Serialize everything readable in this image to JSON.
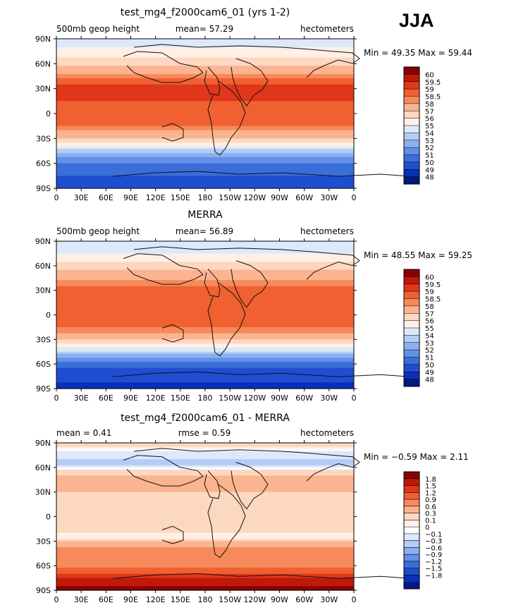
{
  "season": "JJA",
  "chart_data": [
    {
      "type": "heatmap",
      "title": "test_mg4_f2000cam6_01 (yrs 1-2)",
      "left_label": "500mb geop height",
      "center_label": "mean=  57.29",
      "right_label": "hectometers",
      "minmax": "Min =  49.35 Max =  59.44",
      "x_ticks": [
        "0",
        "30E",
        "60E",
        "90E",
        "120E",
        "150E",
        "180",
        "150W",
        "120W",
        "90W",
        "60W",
        "30W",
        "0"
      ],
      "y_ticks": [
        "90N",
        "60N",
        "30N",
        "0",
        "30S",
        "60S",
        "90S"
      ],
      "levels": [
        "60",
        "59.5",
        "59",
        "58.5",
        "58",
        "57",
        "56",
        "55",
        "54",
        "53",
        "52",
        "51",
        "50",
        "49",
        "48"
      ],
      "colors": [
        "#8b0000",
        "#c1180c",
        "#e0361b",
        "#f06030",
        "#f78a5a",
        "#fbb48f",
        "#fdd8c0",
        "#fff0e6",
        "#dce8fb",
        "#b4cdf6",
        "#8cb0ef",
        "#6290e6",
        "#3a6ed9",
        "#1f4fd0",
        "#0a2fb8",
        "#001a80"
      ],
      "zonal_profile": [
        {
          "lat": 90,
          "value": 54.5
        },
        {
          "lat": 75,
          "value": 55.2
        },
        {
          "lat": 60,
          "value": 56.6
        },
        {
          "lat": 45,
          "value": 58.3
        },
        {
          "lat": 30,
          "value": 59.3
        },
        {
          "lat": 15,
          "value": 59.0
        },
        {
          "lat": 0,
          "value": 58.8
        },
        {
          "lat": -15,
          "value": 58.6
        },
        {
          "lat": -25,
          "value": 57.6
        },
        {
          "lat": -35,
          "value": 56.0
        },
        {
          "lat": -45,
          "value": 53.5
        },
        {
          "lat": -55,
          "value": 51.5
        },
        {
          "lat": -65,
          "value": 50.5
        },
        {
          "lat": -75,
          "value": 50.0
        },
        {
          "lat": -90,
          "value": 49.6
        }
      ]
    },
    {
      "type": "heatmap",
      "title": "MERRA",
      "left_label": "500mb geop height",
      "center_label": "mean=  56.89",
      "right_label": "hectometers",
      "minmax": "Min =  48.55 Max =  59.25",
      "x_ticks": [
        "0",
        "30E",
        "60E",
        "90E",
        "120E",
        "150E",
        "180",
        "150W",
        "120W",
        "90W",
        "60W",
        "30W",
        "0"
      ],
      "y_ticks": [
        "90N",
        "60N",
        "30N",
        "0",
        "30S",
        "60S",
        "90S"
      ],
      "levels": [
        "60",
        "59.5",
        "59",
        "58.5",
        "58",
        "57",
        "56",
        "55",
        "54",
        "53",
        "52",
        "51",
        "50",
        "49",
        "48"
      ],
      "colors": [
        "#8b0000",
        "#c1180c",
        "#e0361b",
        "#f06030",
        "#f78a5a",
        "#fbb48f",
        "#fdd8c0",
        "#fff0e6",
        "#dce8fb",
        "#b4cdf6",
        "#8cb0ef",
        "#6290e6",
        "#3a6ed9",
        "#1f4fd0",
        "#0a2fb8",
        "#001a80"
      ],
      "zonal_profile": [
        {
          "lat": 90,
          "value": 54.3
        },
        {
          "lat": 75,
          "value": 55.0
        },
        {
          "lat": 60,
          "value": 56.4
        },
        {
          "lat": 45,
          "value": 57.9
        },
        {
          "lat": 30,
          "value": 58.9
        },
        {
          "lat": 15,
          "value": 58.8
        },
        {
          "lat": 0,
          "value": 58.7
        },
        {
          "lat": -15,
          "value": 58.5
        },
        {
          "lat": -25,
          "value": 57.8
        },
        {
          "lat": -35,
          "value": 56.2
        },
        {
          "lat": -45,
          "value": 53.8
        },
        {
          "lat": -55,
          "value": 51.3
        },
        {
          "lat": -65,
          "value": 49.9
        },
        {
          "lat": -75,
          "value": 49.2
        },
        {
          "lat": -90,
          "value": 48.8
        }
      ]
    },
    {
      "type": "heatmap",
      "title": "test_mg4_f2000cam6_01 - MERRA",
      "left_label": "mean =    0.41",
      "center_label": "rmse =    0.59",
      "right_label": "hectometers",
      "minmax": "Min =  −0.59 Max =    2.11",
      "x_ticks": [
        "0",
        "30E",
        "60E",
        "90E",
        "120E",
        "150E",
        "180",
        "150W",
        "120W",
        "90W",
        "60W",
        "30W",
        "0"
      ],
      "y_ticks": [
        "90N",
        "60N",
        "30N",
        "0",
        "30S",
        "60S",
        "90S"
      ],
      "levels": [
        "1.8",
        "1.5",
        "1.2",
        "0.9",
        "0.6",
        "0.3",
        "0.1",
        "0",
        "−0.1",
        "−0.3",
        "−0.6",
        "−0.9",
        "−1.2",
        "−1.5",
        "−1.8"
      ],
      "colors": [
        "#8b0000",
        "#c1180c",
        "#e0361b",
        "#f06030",
        "#f78a5a",
        "#fbb48f",
        "#fdd8c0",
        "#fff0e6",
        "#ffffff",
        "#dce8fb",
        "#b4cdf6",
        "#8cb0ef",
        "#6290e6",
        "#3a6ed9",
        "#1f4fd0",
        "#0a2fb8",
        "#001a80"
      ],
      "zonal_profile": [
        {
          "lat": 90,
          "value": 0.2
        },
        {
          "lat": 75,
          "value": -0.2
        },
        {
          "lat": 65,
          "value": -0.4
        },
        {
          "lat": 55,
          "value": 0.2
        },
        {
          "lat": 45,
          "value": 0.45
        },
        {
          "lat": 30,
          "value": 0.3
        },
        {
          "lat": 15,
          "value": 0.2
        },
        {
          "lat": 0,
          "value": 0.2
        },
        {
          "lat": -15,
          "value": 0.2
        },
        {
          "lat": -25,
          "value": 0.0
        },
        {
          "lat": -35,
          "value": 0.5
        },
        {
          "lat": -45,
          "value": 0.9
        },
        {
          "lat": -55,
          "value": 0.6
        },
        {
          "lat": -65,
          "value": 1.0
        },
        {
          "lat": -75,
          "value": 1.5
        },
        {
          "lat": -90,
          "value": 2.0
        }
      ]
    }
  ]
}
